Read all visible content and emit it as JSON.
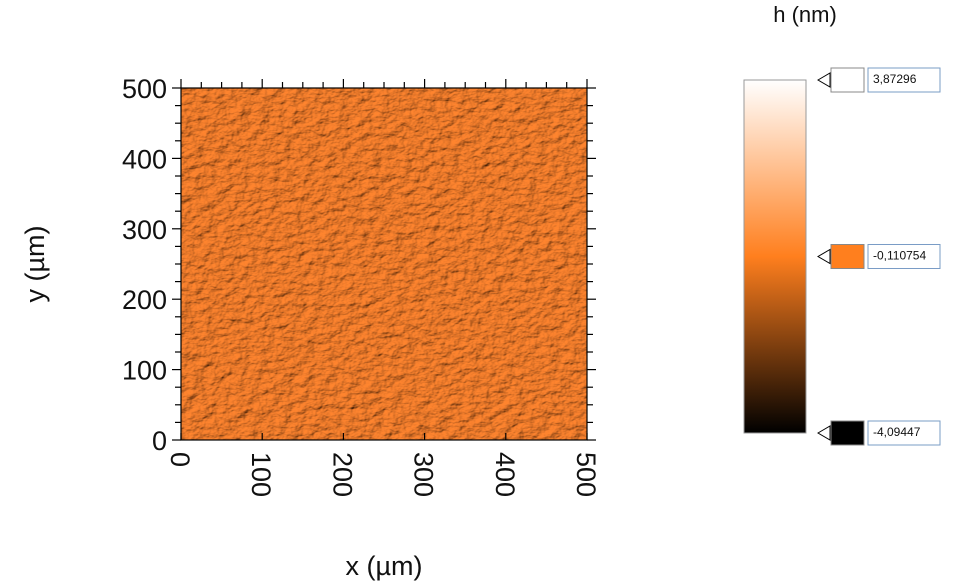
{
  "chart_data": {
    "type": "image",
    "xlabel": "x (µm)",
    "ylabel": "y (µm)",
    "xlim": [
      0,
      500
    ],
    "ylim": [
      0,
      500
    ],
    "xticks": [
      0,
      100,
      200,
      300,
      400,
      500
    ],
    "yticks": [
      0,
      100,
      200,
      300,
      400,
      500
    ],
    "colorbar": {
      "title": "h (nm)",
      "stops": [
        {
          "value": 3.87296,
          "label": "3,87296",
          "color": "#ffffff"
        },
        {
          "value": -0.110754,
          "label": "-0,110754",
          "color": "#ff7f1e"
        },
        {
          "value": -4.09447,
          "label": "-4,09447",
          "color": "#000000"
        }
      ]
    }
  }
}
